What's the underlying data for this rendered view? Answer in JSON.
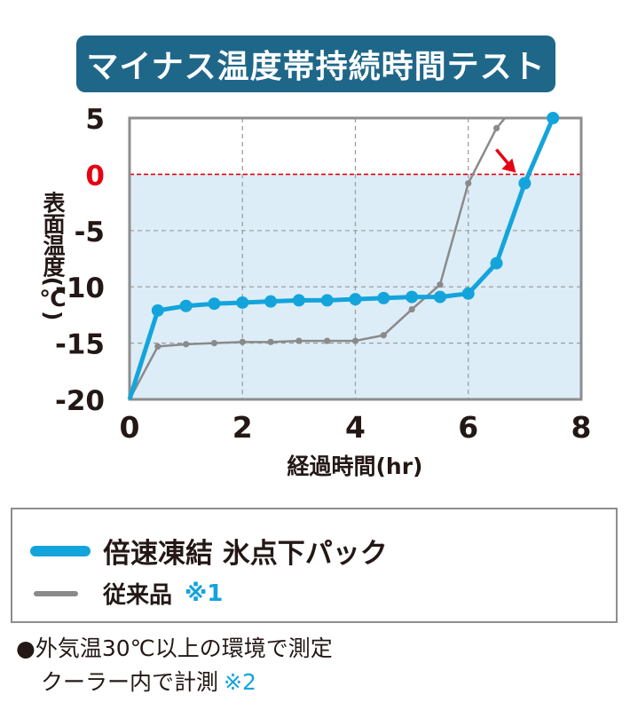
{
  "title": "マイナス温度帯持続時間テスト",
  "chart_data": {
    "type": "line",
    "xlabel": "経過時間(hr)",
    "ylabel": "表面温度(℃)",
    "xlim": [
      0,
      8
    ],
    "ylim": [
      -20,
      5
    ],
    "x_ticks": [
      "0",
      "2",
      "4",
      "6",
      "8"
    ],
    "y_ticks": [
      "5",
      "0",
      "-5",
      "-10",
      "-15",
      "-20"
    ],
    "y_tick_values": [
      5,
      0,
      -5,
      -10,
      -15,
      -20
    ],
    "highlight_tick": "0",
    "grid": true,
    "reference_line": {
      "y": 0,
      "style": "dashed",
      "color": "#e60012"
    },
    "shaded_region": {
      "from": -20,
      "to": 0,
      "color": "#dcedf8"
    },
    "series": [
      {
        "name": "倍速凍結 氷点下パック",
        "color": "#14a4dc",
        "x": [
          0,
          0.5,
          1.0,
          1.5,
          2.0,
          2.5,
          3.0,
          3.5,
          4.0,
          4.5,
          5.0,
          5.5,
          6.0,
          6.5,
          7.0,
          7.5
        ],
        "y": [
          -20,
          -12.1,
          -11.7,
          -11.5,
          -11.4,
          -11.3,
          -11.2,
          -11.2,
          -11.1,
          -11.0,
          -10.9,
          -10.9,
          -10.6,
          -7.9,
          -0.8,
          5.0
        ]
      },
      {
        "name": "従来品",
        "color": "#8a8a8a",
        "x": [
          0,
          0.5,
          1.0,
          1.5,
          2.0,
          2.5,
          3.0,
          3.5,
          4.0,
          4.5,
          5.0,
          5.5,
          6.0,
          6.5,
          6.65
        ],
        "y": [
          -20,
          -15.3,
          -15.1,
          -15.0,
          -14.9,
          -14.9,
          -14.8,
          -14.8,
          -14.8,
          -14.3,
          -12.0,
          -9.8,
          -0.8,
          4.1,
          5.0
        ]
      }
    ],
    "annotation": {
      "type": "arrow",
      "color": "#e60012",
      "points_to": {
        "x": 7.0,
        "y": -0.8
      }
    }
  },
  "legend": {
    "items": [
      {
        "label": "倍速凍結 氷点下パック",
        "color": "#14a4dc"
      },
      {
        "label": "従来品",
        "note": "※1",
        "color": "#8a8a8a"
      }
    ]
  },
  "footnote": {
    "line1": "●外気温30℃以上の環境で測定",
    "line2_text": "クーラー内で計測",
    "line2_note": "※2"
  }
}
